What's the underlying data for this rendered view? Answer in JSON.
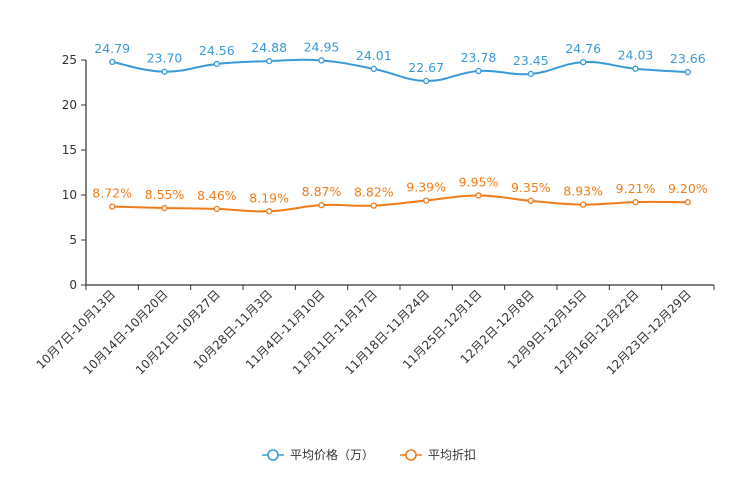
{
  "chart_data": {
    "type": "line",
    "title": "",
    "xlabel": "",
    "ylabel": "",
    "ylim": [
      0,
      25
    ],
    "yticks": [
      0,
      5,
      10,
      15,
      20,
      25
    ],
    "grid": false,
    "legend_position": "bottom-center",
    "categories": [
      "10月7日-10月13日",
      "10月14日-10月20日",
      "10月21日-10月27日",
      "10月28日-11月3日",
      "11月4日-11月10日",
      "11月11日-11月17日",
      "11月18日-11月24日",
      "11月25日-12月1日",
      "12月2日-12月8日",
      "12月9日-12月15日",
      "12月16日-12月22日",
      "12月23日-12月29日"
    ],
    "series": [
      {
        "name": "平均价格（万）",
        "color": "#3a9ad9",
        "values": [
          24.79,
          23.7,
          24.56,
          24.88,
          24.95,
          24.01,
          22.67,
          23.78,
          23.45,
          24.76,
          24.03,
          23.66
        ],
        "labels": [
          "24.79",
          "23.70",
          "24.56",
          "24.88",
          "24.95",
          "24.01",
          "22.67",
          "23.78",
          "23.45",
          "24.76",
          "24.03",
          "23.66"
        ]
      },
      {
        "name": "平均折扣",
        "color": "#f07c1b",
        "values": [
          8.72,
          8.55,
          8.46,
          8.19,
          8.87,
          8.82,
          9.39,
          9.95,
          9.35,
          8.93,
          9.21,
          9.2
        ],
        "labels": [
          "8.72%",
          "8.55%",
          "8.46%",
          "8.19%",
          "8.87%",
          "8.82%",
          "9.39%",
          "9.95%",
          "9.35%",
          "8.93%",
          "9.21%",
          "9.20%"
        ]
      }
    ]
  }
}
